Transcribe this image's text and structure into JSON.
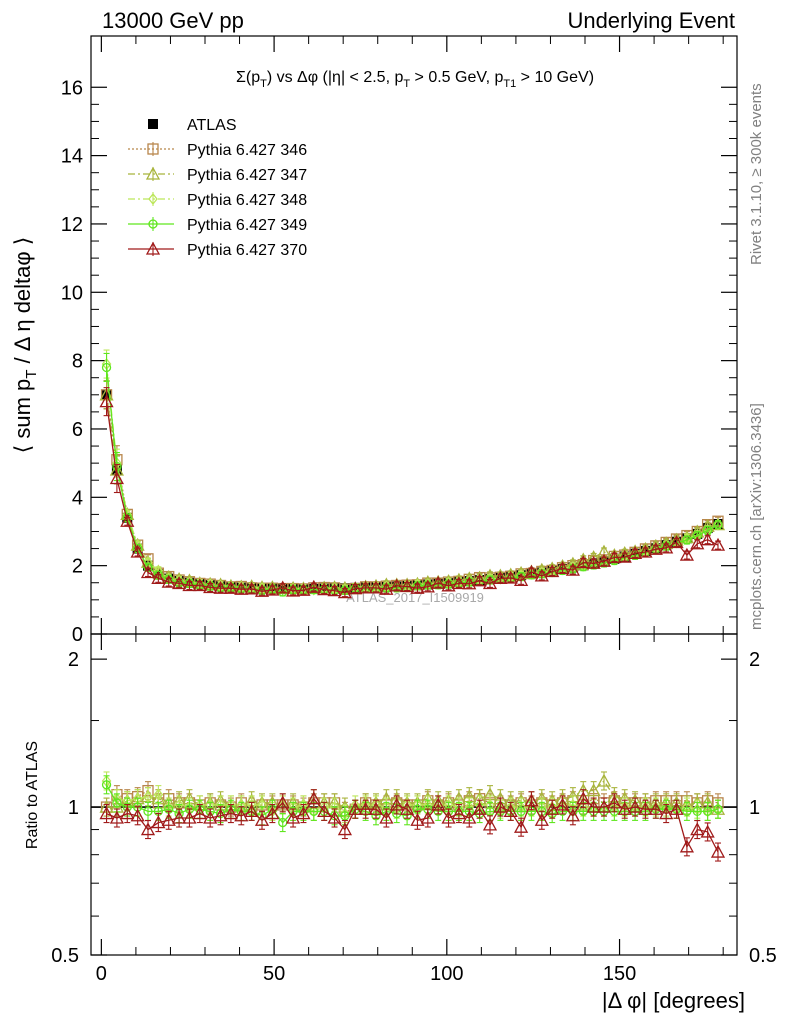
{
  "header": {
    "left": "13000 GeV pp",
    "right": "Underlying Event"
  },
  "side_labels": {
    "rivet": "Rivet 3.1.10, ≥ 300k events",
    "mcplots": "mcplots.cern.ch [arXiv:1306.3436]"
  },
  "watermark": "ATLAS_2017_I1509919",
  "chart_data": [
    {
      "type": "line",
      "title": "Σ(p_T) vs Δφ (|η| < 2.5, p_T > 0.5 GeV, p_T1 > 10 GeV)",
      "title_parts": {
        "a": "Σ(p",
        "a_sub": "T",
        "b": ") vs Δφ (|η| < 2.5, p",
        "b_sub": "T",
        "c": " > 0.5 GeV, p",
        "c_sub": "T1",
        "d": " > 10 GeV)"
      },
      "ylabel": "⟨ sum p_T / Δ η deltaφ ⟩",
      "ylabel_parts": {
        "a": "⟨ sum p",
        "sub": "T",
        "b": " / Δ η deltaφ ⟩"
      },
      "xlabel": "",
      "xlim": [
        -3,
        184
      ],
      "ylim": [
        0,
        17.5
      ],
      "yticks": [
        0,
        2,
        4,
        6,
        8,
        10,
        12,
        14,
        16
      ],
      "ytick_labels": [
        "0",
        "2",
        "4",
        "6",
        "8",
        "10",
        "12",
        "14",
        "16"
      ],
      "x": [
        1.5,
        4.5,
        7.5,
        10.5,
        13.5,
        16.5,
        19.5,
        22.5,
        25.5,
        28.5,
        31.5,
        34.5,
        37.5,
        40.5,
        43.5,
        46.5,
        49.5,
        52.5,
        55.5,
        58.5,
        61.5,
        64.5,
        67.5,
        70.5,
        73.5,
        76.5,
        79.5,
        82.5,
        85.5,
        88.5,
        91.5,
        94.5,
        97.5,
        100.5,
        103.5,
        106.5,
        109.5,
        112.5,
        115.5,
        118.5,
        121.5,
        124.5,
        127.5,
        130.5,
        133.5,
        136.5,
        139.5,
        142.5,
        145.5,
        148.5,
        151.5,
        154.5,
        157.5,
        160.5,
        163.5,
        166.5,
        169.5,
        172.5,
        175.5,
        178.5
      ],
      "legend_position": "top-left",
      "series": [
        {
          "name": "ATLAS",
          "color": "#000000",
          "marker": "filled-square",
          "line": "none",
          "values": [
            7.0,
            4.8,
            3.4,
            2.5,
            2.0,
            1.75,
            1.62,
            1.55,
            1.5,
            1.46,
            1.43,
            1.4,
            1.38,
            1.36,
            1.35,
            1.33,
            1.33,
            1.32,
            1.32,
            1.32,
            1.32,
            1.33,
            1.33,
            1.34,
            1.35,
            1.36,
            1.37,
            1.38,
            1.39,
            1.41,
            1.43,
            1.45,
            1.47,
            1.49,
            1.52,
            1.55,
            1.58,
            1.61,
            1.64,
            1.68,
            1.72,
            1.76,
            1.8,
            1.85,
            1.9,
            1.95,
            2.01,
            2.07,
            2.13,
            2.2,
            2.27,
            2.35,
            2.43,
            2.51,
            2.6,
            2.7,
            2.8,
            2.93,
            3.1,
            3.22
          ]
        },
        {
          "name": "Pythia 6.427 346",
          "color": "#b8864b",
          "marker": "open-square",
          "line": "dotted",
          "values": [
            7.0,
            5.1,
            3.5,
            2.6,
            2.2,
            1.78,
            1.68,
            1.58,
            1.53,
            1.48,
            1.46,
            1.42,
            1.38,
            1.39,
            1.35,
            1.34,
            1.34,
            1.33,
            1.33,
            1.32,
            1.35,
            1.36,
            1.35,
            1.31,
            1.33,
            1.38,
            1.38,
            1.4,
            1.42,
            1.43,
            1.44,
            1.49,
            1.49,
            1.52,
            1.54,
            1.6,
            1.65,
            1.64,
            1.66,
            1.69,
            1.76,
            1.77,
            1.83,
            1.86,
            1.94,
            2.0,
            2.03,
            2.15,
            2.17,
            2.27,
            2.31,
            2.39,
            2.49,
            2.58,
            2.68,
            2.78,
            2.88,
            3.0,
            3.2,
            3.3
          ]
        },
        {
          "name": "Pythia 6.427 347",
          "color": "#a8b43c",
          "marker": "open-triangle",
          "line": "dash-dot",
          "values": [
            7.0,
            4.8,
            3.5,
            2.6,
            2.1,
            1.82,
            1.66,
            1.6,
            1.56,
            1.48,
            1.46,
            1.44,
            1.4,
            1.38,
            1.39,
            1.36,
            1.36,
            1.34,
            1.34,
            1.33,
            1.37,
            1.35,
            1.36,
            1.34,
            1.33,
            1.38,
            1.4,
            1.44,
            1.44,
            1.44,
            1.46,
            1.51,
            1.52,
            1.54,
            1.58,
            1.62,
            1.64,
            1.7,
            1.7,
            1.73,
            1.78,
            1.82,
            1.87,
            1.91,
            1.98,
            2.05,
            2.17,
            2.24,
            2.4,
            2.3,
            2.36,
            2.41,
            2.48,
            2.57,
            2.65,
            2.75,
            2.82,
            2.99,
            3.15,
            3.2
          ]
        },
        {
          "name": "Pythia 6.427 348",
          "color": "#bce65a",
          "marker": "open-diamond",
          "line": "dash-dot",
          "values": [
            7.9,
            5.0,
            3.5,
            2.6,
            2.1,
            1.85,
            1.62,
            1.56,
            1.5,
            1.48,
            1.45,
            1.41,
            1.39,
            1.38,
            1.36,
            1.34,
            1.31,
            1.33,
            1.32,
            1.33,
            1.3,
            1.33,
            1.33,
            1.3,
            1.36,
            1.38,
            1.38,
            1.38,
            1.38,
            1.42,
            1.45,
            1.46,
            1.48,
            1.5,
            1.52,
            1.55,
            1.6,
            1.62,
            1.62,
            1.68,
            1.72,
            1.76,
            1.8,
            1.85,
            1.92,
            1.96,
            2.02,
            2.06,
            2.12,
            2.2,
            2.28,
            2.36,
            2.43,
            2.52,
            2.59,
            2.68,
            2.8,
            2.9,
            3.05,
            3.2
          ]
        },
        {
          "name": "Pythia 6.427 349",
          "color": "#5fe61e",
          "marker": "open-circle",
          "line": "solid",
          "values": [
            7.8,
            4.9,
            3.4,
            2.5,
            1.95,
            1.72,
            1.6,
            1.5,
            1.48,
            1.44,
            1.4,
            1.36,
            1.37,
            1.33,
            1.32,
            1.28,
            1.32,
            1.23,
            1.3,
            1.3,
            1.3,
            1.31,
            1.28,
            1.28,
            1.34,
            1.33,
            1.32,
            1.35,
            1.35,
            1.36,
            1.41,
            1.43,
            1.44,
            1.46,
            1.49,
            1.52,
            1.54,
            1.58,
            1.6,
            1.64,
            1.68,
            1.73,
            1.76,
            1.8,
            1.86,
            1.91,
            1.97,
            2.02,
            2.08,
            2.15,
            2.23,
            2.3,
            2.38,
            2.48,
            2.57,
            2.66,
            2.75,
            2.88,
            3.03,
            3.2
          ]
        },
        {
          "name": "Pythia 6.427 370",
          "color": "#a01a1a",
          "marker": "open-triangle",
          "line": "solid",
          "values": [
            6.8,
            4.55,
            3.3,
            2.4,
            1.8,
            1.63,
            1.52,
            1.48,
            1.42,
            1.42,
            1.36,
            1.34,
            1.34,
            1.31,
            1.32,
            1.25,
            1.29,
            1.35,
            1.26,
            1.28,
            1.37,
            1.3,
            1.27,
            1.21,
            1.33,
            1.35,
            1.35,
            1.31,
            1.41,
            1.39,
            1.34,
            1.38,
            1.49,
            1.41,
            1.48,
            1.47,
            1.56,
            1.48,
            1.63,
            1.64,
            1.57,
            1.81,
            1.7,
            1.83,
            1.92,
            1.87,
            2.09,
            2.07,
            2.13,
            2.24,
            2.25,
            2.36,
            2.4,
            2.48,
            2.52,
            2.68,
            2.31,
            2.64,
            2.76,
            2.6
          ]
        }
      ]
    },
    {
      "type": "line",
      "title": "",
      "ylabel": "Ratio to ATLAS",
      "xlabel": "|Δ φ| [degrees]",
      "xlim": [
        -3,
        184
      ],
      "ylim": [
        0.5,
        2.25
      ],
      "yscale": "log",
      "xticks": [
        0,
        50,
        100,
        150
      ],
      "xtick_labels": [
        "0",
        "50",
        "100",
        "150"
      ],
      "yticks": [
        0.5,
        1,
        2
      ],
      "ytick_labels": [
        "0.5",
        "1",
        "2"
      ],
      "reference_line": 1,
      "x": [
        1.5,
        4.5,
        7.5,
        10.5,
        13.5,
        16.5,
        19.5,
        22.5,
        25.5,
        28.5,
        31.5,
        34.5,
        37.5,
        40.5,
        43.5,
        46.5,
        49.5,
        52.5,
        55.5,
        58.5,
        61.5,
        64.5,
        67.5,
        70.5,
        73.5,
        76.5,
        79.5,
        82.5,
        85.5,
        88.5,
        91.5,
        94.5,
        97.5,
        100.5,
        103.5,
        106.5,
        109.5,
        112.5,
        115.5,
        118.5,
        121.5,
        124.5,
        127.5,
        130.5,
        133.5,
        136.5,
        139.5,
        142.5,
        145.5,
        148.5,
        151.5,
        154.5,
        157.5,
        160.5,
        163.5,
        166.5,
        169.5,
        172.5,
        175.5,
        178.5
      ],
      "series": [
        {
          "name": "Pythia 6.427 346",
          "color": "#b8864b",
          "marker": "open-square",
          "line": "dotted",
          "values": [
            1.0,
            1.06,
            1.04,
            1.05,
            1.08,
            1.02,
            1.04,
            1.02,
            1.02,
            1.01,
            1.02,
            1.01,
            1.0,
            1.02,
            1.0,
            1.01,
            1.01,
            1.01,
            1.01,
            1.0,
            1.02,
            1.02,
            1.02,
            0.98,
            0.99,
            1.02,
            1.01,
            1.01,
            1.02,
            1.01,
            1.01,
            1.03,
            1.01,
            1.02,
            1.01,
            1.03,
            1.04,
            1.02,
            1.01,
            1.01,
            1.02,
            1.01,
            1.02,
            1.01,
            1.02,
            1.03,
            1.01,
            1.04,
            1.02,
            1.03,
            1.02,
            1.02,
            1.02,
            1.03,
            1.03,
            1.03,
            1.03,
            1.02,
            1.03,
            1.02
          ]
        },
        {
          "name": "Pythia 6.427 347",
          "color": "#a8b43c",
          "marker": "open-triangle",
          "line": "dash-dot",
          "values": [
            1.0,
            1.0,
            1.03,
            1.04,
            1.05,
            1.04,
            1.02,
            1.03,
            1.04,
            1.01,
            1.02,
            1.03,
            1.01,
            1.01,
            1.03,
            1.02,
            1.02,
            1.02,
            1.02,
            1.01,
            1.04,
            1.02,
            1.02,
            1.0,
            0.99,
            1.02,
            1.02,
            1.04,
            1.04,
            1.02,
            1.02,
            1.04,
            1.03,
            1.03,
            1.04,
            1.05,
            1.04,
            1.06,
            1.04,
            1.03,
            1.03,
            1.03,
            1.04,
            1.03,
            1.04,
            1.05,
            1.08,
            1.08,
            1.13,
            1.05,
            1.04,
            1.03,
            1.02,
            1.02,
            1.02,
            1.02,
            1.01,
            1.02,
            1.02,
            0.99
          ]
        },
        {
          "name": "Pythia 6.427 348",
          "color": "#bce65a",
          "marker": "open-diamond",
          "line": "dash-dot",
          "values": [
            1.13,
            1.04,
            1.03,
            1.04,
            1.05,
            1.06,
            1.0,
            1.01,
            1.0,
            1.01,
            1.01,
            1.01,
            1.01,
            1.01,
            1.01,
            1.01,
            0.98,
            1.01,
            1.0,
            1.01,
            0.98,
            1.0,
            1.0,
            0.97,
            1.01,
            1.01,
            1.01,
            1.0,
            0.99,
            1.01,
            1.01,
            1.01,
            1.01,
            1.01,
            1.0,
            1.0,
            1.01,
            1.01,
            0.99,
            1.0,
            1.0,
            1.0,
            1.0,
            1.0,
            1.01,
            1.01,
            1.0,
            1.0,
            1.0,
            1.0,
            1.0,
            1.0,
            1.0,
            1.0,
            1.0,
            0.99,
            1.0,
            0.99,
            0.98,
            0.99
          ]
        },
        {
          "name": "Pythia 6.427 349",
          "color": "#5fe61e",
          "marker": "open-circle",
          "line": "solid",
          "values": [
            1.11,
            1.02,
            1.0,
            1.0,
            0.98,
            0.98,
            0.99,
            0.97,
            0.99,
            0.99,
            0.98,
            0.97,
            0.99,
            0.98,
            0.98,
            0.96,
            0.99,
            0.93,
            0.98,
            0.98,
            0.98,
            0.98,
            0.96,
            0.96,
            0.99,
            0.98,
            0.96,
            0.98,
            0.97,
            0.96,
            0.99,
            0.99,
            0.98,
            0.98,
            0.98,
            0.98,
            0.97,
            0.98,
            0.98,
            0.98,
            0.98,
            0.98,
            0.98,
            0.97,
            0.98,
            0.98,
            0.98,
            0.98,
            0.98,
            0.98,
            0.98,
            0.98,
            0.98,
            0.99,
            0.99,
            0.99,
            0.98,
            0.98,
            0.98,
            0.99
          ]
        },
        {
          "name": "Pythia 6.427 370",
          "color": "#a01a1a",
          "marker": "open-triangle",
          "line": "solid",
          "values": [
            0.97,
            0.95,
            0.97,
            0.96,
            0.9,
            0.93,
            0.94,
            0.95,
            0.95,
            0.97,
            0.95,
            0.96,
            0.97,
            0.96,
            0.98,
            0.94,
            0.97,
            1.02,
            0.95,
            0.97,
            1.04,
            0.98,
            0.95,
            0.9,
            0.99,
            0.99,
            0.99,
            0.95,
            1.01,
            0.99,
            0.94,
            0.95,
            1.01,
            0.95,
            0.97,
            0.95,
            0.99,
            0.92,
            1.0,
            0.98,
            0.91,
            1.03,
            0.94,
            0.99,
            1.01,
            0.96,
            1.04,
            1.0,
            1.0,
            1.02,
            0.99,
            1.0,
            0.99,
            0.99,
            0.97,
            0.99,
            0.83,
            0.9,
            0.89,
            0.81
          ]
        }
      ]
    }
  ]
}
